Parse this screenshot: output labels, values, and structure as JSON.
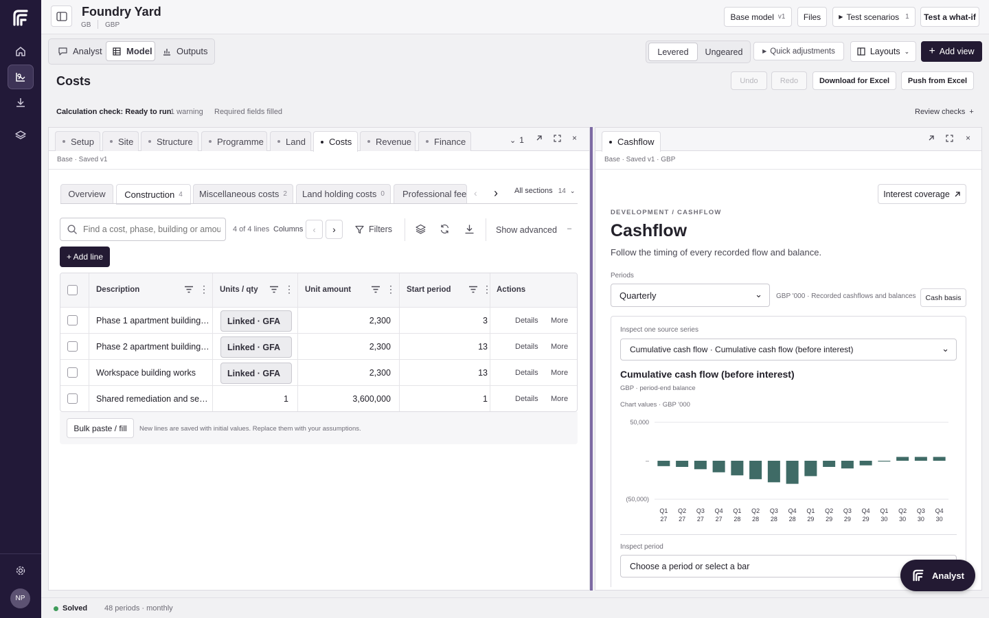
{
  "app": {
    "project_name": "Foundry Yard",
    "region": "GB",
    "currency": "GBP",
    "user_initials": "NP",
    "colors": {
      "rail": "#221938",
      "accent": "#231a33",
      "bar": "#3f6b66",
      "divider": "#7d6aa3"
    }
  },
  "rail": {
    "icons": [
      "logo-icon",
      "home-icon",
      "model-icon",
      "download-icon",
      "layers-icon",
      "gear-icon"
    ]
  },
  "topbar": {
    "base_model_label": "Base model",
    "base_model_version": "v1",
    "files_label": "Files",
    "test_scenarios_label": "Test scenarios",
    "test_scenarios_count": "1",
    "what_if_label": "Test a what-if"
  },
  "modes": {
    "analyst": "Analyst",
    "model": "Model",
    "outputs": "Outputs"
  },
  "toolbar": {
    "levered": "Levered",
    "ungeared": "Ungeared",
    "quick_adjustments": "Quick adjustments",
    "layouts": "Layouts",
    "add_view": "Add view"
  },
  "page": {
    "title": "Costs",
    "undo": "Undo",
    "redo": "Redo",
    "download": "Download for Excel",
    "push": "Push from Excel",
    "calc_check": "Calculation check: Ready to run",
    "warnings": "1 warning",
    "required": "Required fields filled",
    "review_checks": "Review checks"
  },
  "left_panel": {
    "tabs": [
      "Setup",
      "Site",
      "Structure",
      "Programme",
      "Land",
      "Costs",
      "Revenue",
      "Finance"
    ],
    "active_tab": "Costs",
    "collapsed_count": "1",
    "meta": "Base · Saved v1",
    "sections": [
      {
        "label": "Overview",
        "count": ""
      },
      {
        "label": "Construction",
        "count": "4"
      },
      {
        "label": "Miscellaneous costs",
        "count": "2"
      },
      {
        "label": "Land holding costs",
        "count": "0"
      },
      {
        "label": "Professional fees",
        "count": ""
      }
    ],
    "all_sections": "All sections",
    "all_sections_count": "14",
    "search_placeholder": "Find a cost, phase, building or amount",
    "line_count": "4 of 4 lines",
    "columns": "Columns",
    "filters": "Filters",
    "show_advanced": "Show advanced",
    "add_line": "+ Add line",
    "table": {
      "headers": [
        "Description",
        "Units / qty",
        "Unit amount",
        "Start period",
        "Actions"
      ],
      "rows": [
        {
          "description": "Phase 1 apartment building…",
          "units": "Linked · GFA",
          "linked": true,
          "unit_amount": "2,300",
          "start": "3"
        },
        {
          "description": "Phase 2 apartment building…",
          "units": "Linked · GFA",
          "linked": true,
          "unit_amount": "2,300",
          "start": "13"
        },
        {
          "description": "Workspace building works",
          "units": "Linked · GFA",
          "linked": true,
          "unit_amount": "2,300",
          "start": "13"
        },
        {
          "description": "Shared remediation and se…",
          "units": "1",
          "linked": false,
          "unit_amount": "3,600,000",
          "start": "1"
        }
      ],
      "details": "Details",
      "more": "More"
    },
    "bulk_paste": "Bulk paste / fill",
    "bulk_note": "New lines are saved with initial values. Replace them with your assumptions."
  },
  "right_panel": {
    "tab": "Cashflow",
    "meta": "Base · Saved v1 · GBP",
    "interest_coverage": "Interest coverage",
    "eyebrow": "DEVELOPMENT / CASHFLOW",
    "title": "Cashflow",
    "subtitle": "Follow the timing of every recorded flow and balance.",
    "periods_label": "Periods",
    "periods_value": "Quarterly",
    "units_note": "GBP '000 · Recorded cashflows and balances",
    "cash_basis": "Cash basis",
    "inspect_label": "Inspect one source series",
    "inspect_value": "Cumulative cash flow · Cumulative cash flow (before interest)",
    "chart_title": "Cumulative cash flow (before interest)",
    "chart_sub": "GBP · period-end balance",
    "chart_values_note": "Chart values · GBP '000",
    "inspect_period_label": "Inspect period",
    "inspect_period_placeholder": "Choose a period or select a bar"
  },
  "chart_data": {
    "type": "bar",
    "title": "Cumulative cash flow (before interest)",
    "ylabel": "",
    "xlabel": "",
    "ylim": [
      -50000,
      50000
    ],
    "y_ticks": [
      "50,000",
      "–",
      "(50,000)"
    ],
    "categories": [
      [
        "Q1",
        "27"
      ],
      [
        "Q2",
        "27"
      ],
      [
        "Q3",
        "27"
      ],
      [
        "Q4",
        "27"
      ],
      [
        "Q1",
        "28"
      ],
      [
        "Q2",
        "28"
      ],
      [
        "Q3",
        "28"
      ],
      [
        "Q4",
        "28"
      ],
      [
        "Q1",
        "29"
      ],
      [
        "Q2",
        "29"
      ],
      [
        "Q3",
        "29"
      ],
      [
        "Q4",
        "29"
      ],
      [
        "Q1",
        "30"
      ],
      [
        "Q2",
        "30"
      ],
      [
        "Q3",
        "30"
      ],
      [
        "Q4",
        "30"
      ]
    ],
    "values": [
      -7000,
      -8000,
      -11000,
      -15000,
      -19000,
      -24000,
      -28000,
      -30000,
      -20000,
      -8000,
      -10000,
      -6000,
      -1000,
      5000,
      5000,
      5000
    ],
    "grid": true,
    "color": "#3f6b66"
  },
  "footer": {
    "status": "Solved",
    "periods": "48 periods · monthly",
    "analyst_button": "Analyst"
  }
}
